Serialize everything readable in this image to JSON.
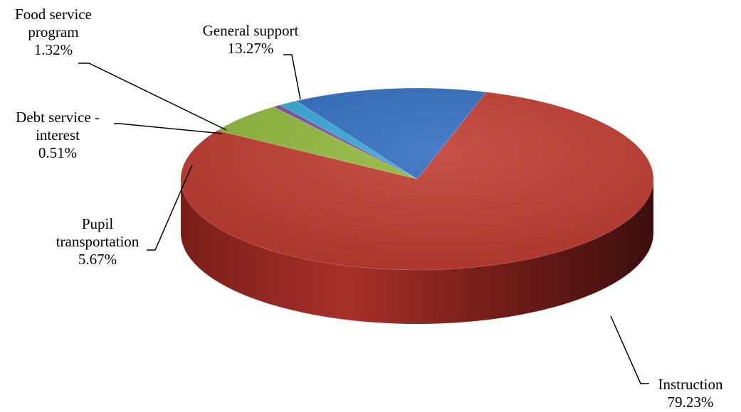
{
  "chart_data": {
    "type": "pie",
    "style": "3d",
    "title": "",
    "slices": [
      {
        "name": "Instruction",
        "value": 79.23,
        "label_lines": [
          "Instruction"
        ],
        "value_label": "79.23%",
        "color": "#c0392f"
      },
      {
        "name": "Pupil transportation",
        "value": 5.67,
        "label_lines": [
          "Pupil",
          "transportation"
        ],
        "value_label": "5.67%",
        "color": "#8fb83a"
      },
      {
        "name": "Debt service - interest",
        "value": 0.51,
        "label_lines": [
          "Debt service -",
          "interest"
        ],
        "value_label": "0.51%",
        "color": "#7a4fa0"
      },
      {
        "name": "Food service program",
        "value": 1.32,
        "label_lines": [
          "Food service",
          "program"
        ],
        "value_label": "1.32%",
        "color": "#34a7d6"
      },
      {
        "name": "General support",
        "value": 13.27,
        "label_lines": [
          "General support"
        ],
        "value_label": "13.27%",
        "color": "#2f6cc0"
      }
    ],
    "legend": "none",
    "data_labels": "outside-with-leader-lines"
  }
}
